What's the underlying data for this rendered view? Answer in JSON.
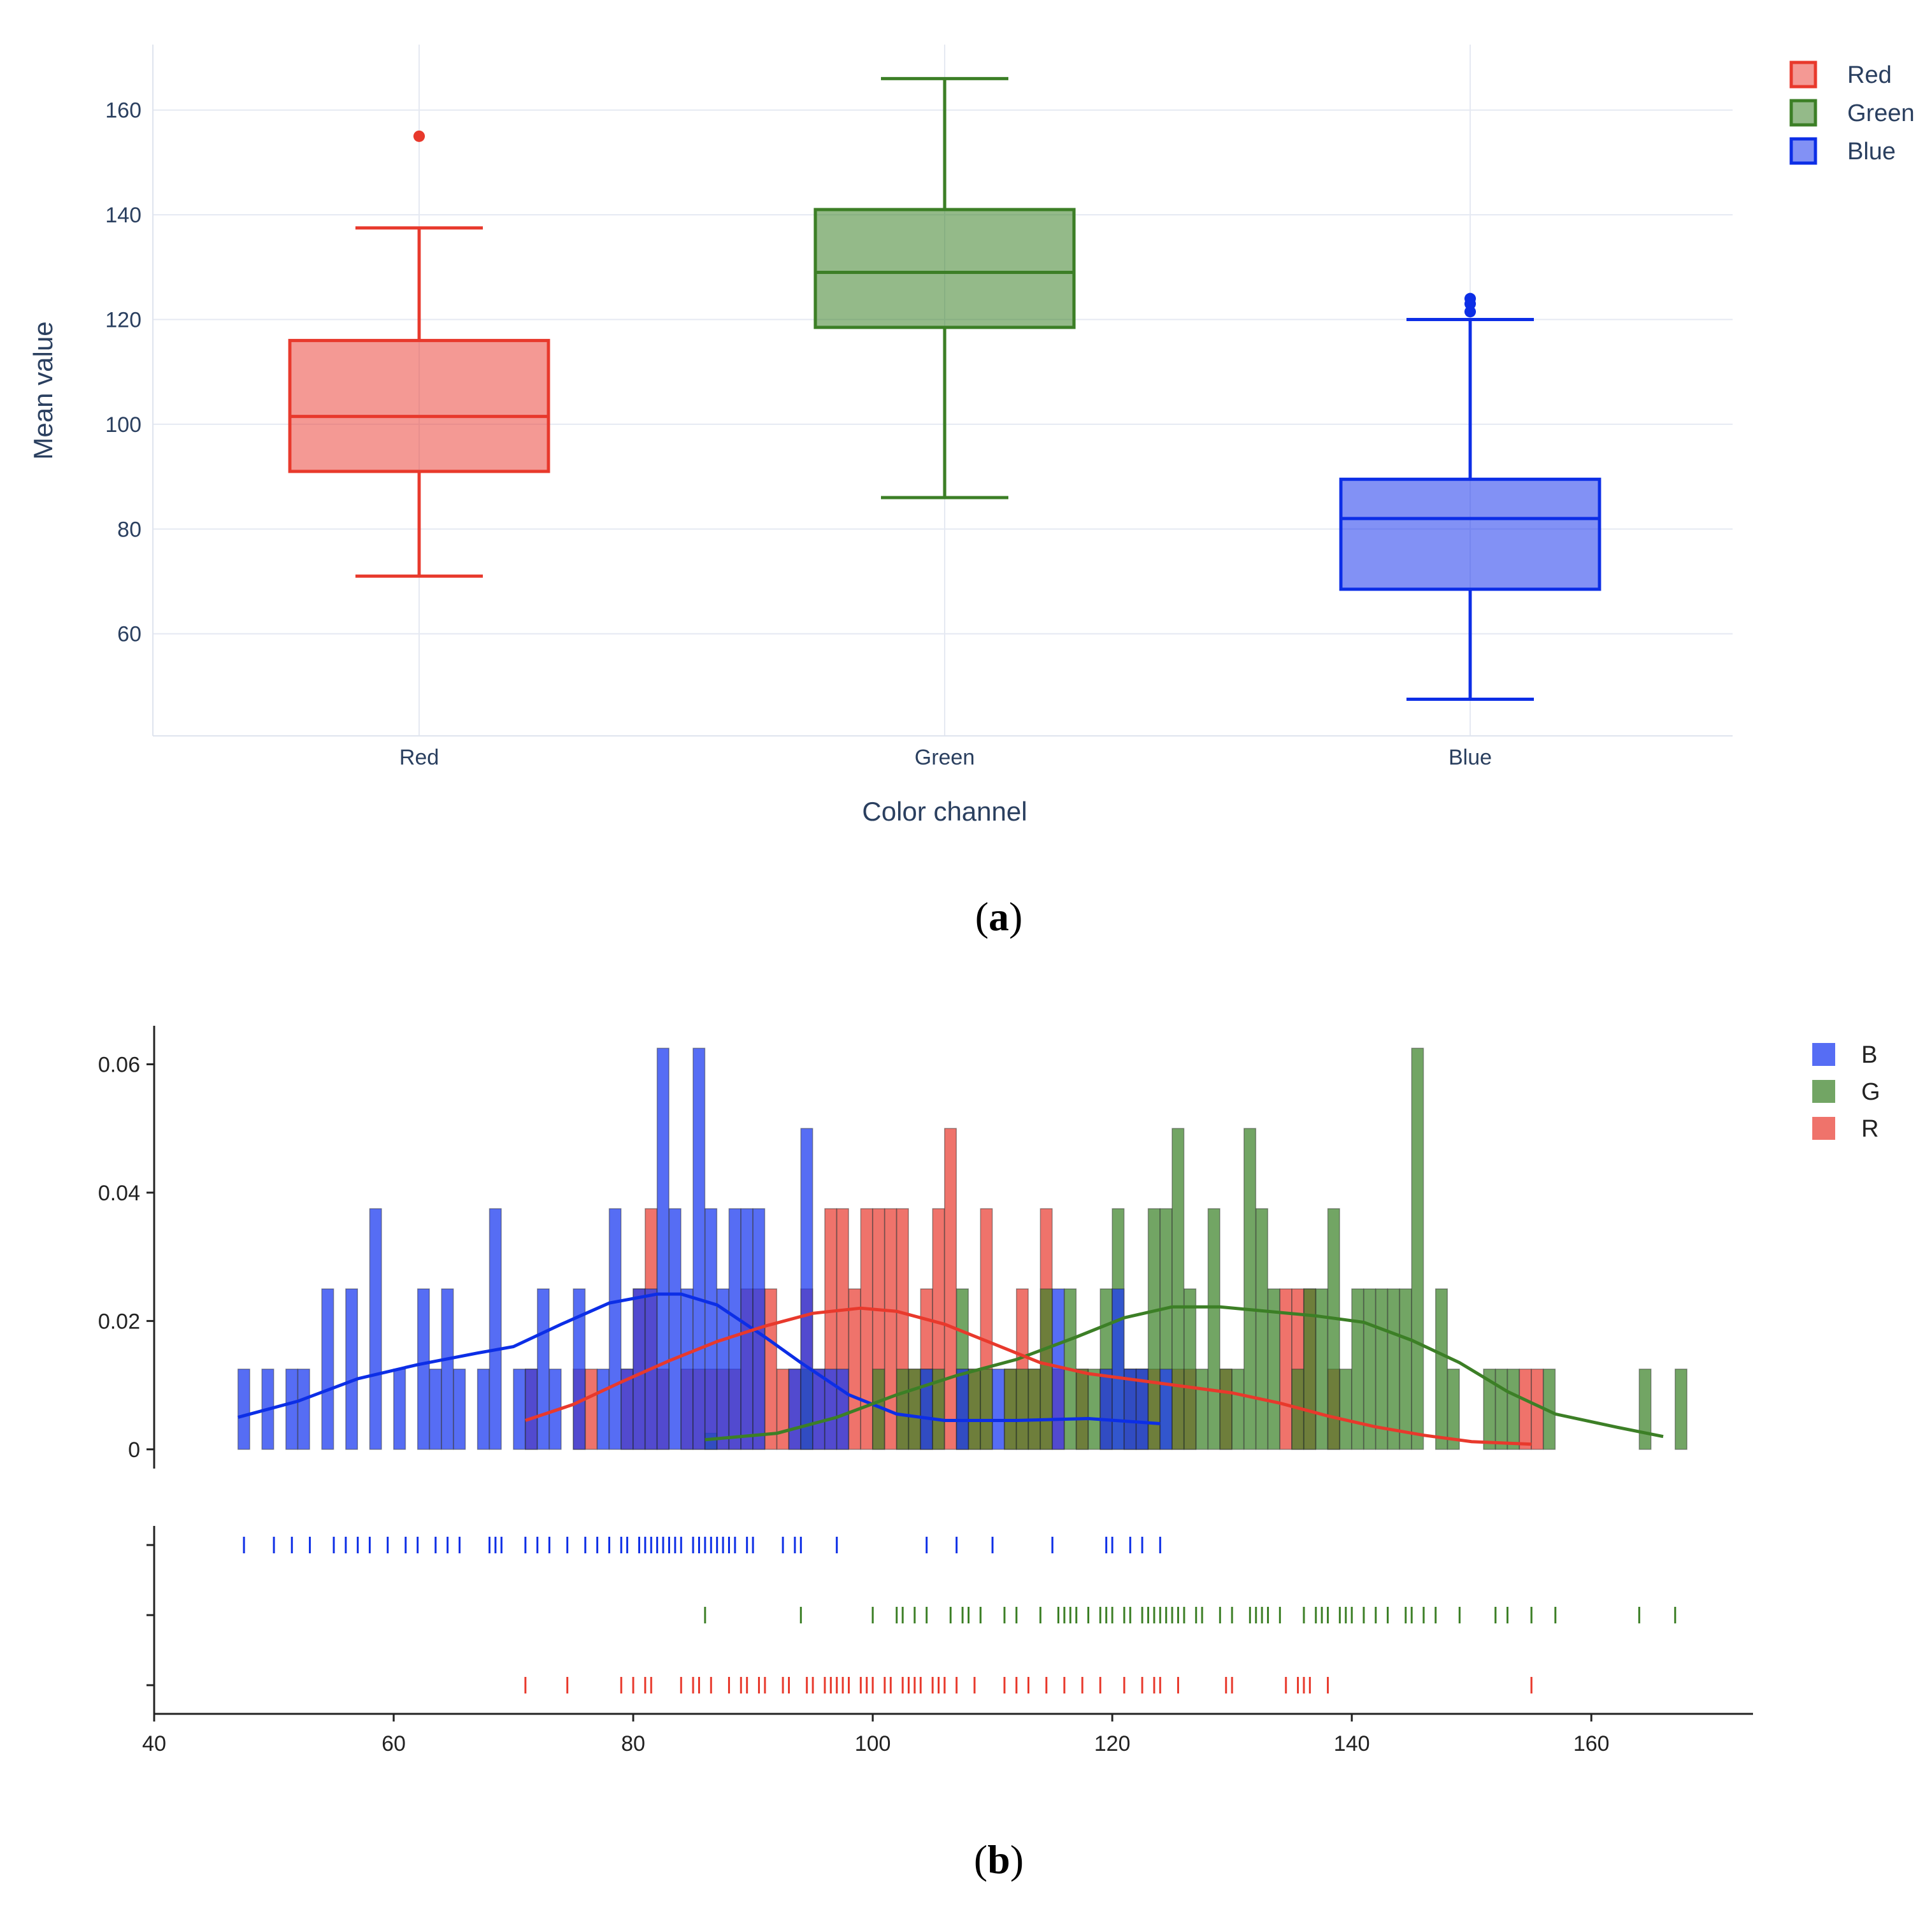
{
  "chart_data": [
    {
      "panel": "a",
      "type": "box",
      "caption": "a",
      "xlabel": "Color channel",
      "ylabel": "Mean value",
      "yticks": [
        60,
        80,
        100,
        120,
        140,
        160
      ],
      "ylim": [
        40.5,
        172.5
      ],
      "grid": true,
      "legend_position": "top-right",
      "series": [
        {
          "name": "Red",
          "category": "Red",
          "color": "#e8392c",
          "fill": "rgba(235,70,60,0.55)",
          "min": 71,
          "q1": 91,
          "median": 101.5,
          "q3": 116,
          "max": 137.5,
          "outliers": [
            155
          ]
        },
        {
          "name": "Green",
          "category": "Green",
          "color": "#3c7f26",
          "fill": "rgba(60,130,40,0.55)",
          "min": 86,
          "q1": 118.5,
          "median": 129,
          "q3": 141,
          "max": 166,
          "outliers": []
        },
        {
          "name": "Blue",
          "category": "Blue",
          "color": "#0c2ee6",
          "fill": "rgba(15,45,235,0.52)",
          "min": 47.5,
          "q1": 68.5,
          "median": 82,
          "q3": 89.5,
          "max": 120,
          "outliers": [
            121.5,
            123,
            124
          ]
        }
      ]
    },
    {
      "panel": "b",
      "type": "histogram",
      "caption": "b",
      "xticks": [
        40,
        60,
        80,
        100,
        120,
        140,
        160
      ],
      "xlim": [
        40,
        173.5
      ],
      "yticks": [
        0,
        0.02,
        0.04,
        0.06
      ],
      "ytick_labels": [
        "0",
        "0.02",
        "0.04",
        "0.06"
      ],
      "ylim": [
        -0.0025,
        0.066
      ],
      "bin_width": 1,
      "legend_position": "top-right",
      "series": [
        {
          "name": "B",
          "color": "#0c2ee6",
          "fill": "rgba(30,60,240,0.75)",
          "bins": [
            [
              47,
              0.0125
            ],
            [
              49,
              0.0125
            ],
            [
              51,
              0.0125
            ],
            [
              52,
              0.0125
            ],
            [
              54,
              0.025
            ],
            [
              56,
              0.025
            ],
            [
              58,
              0.0375
            ],
            [
              60,
              0.0125
            ],
            [
              62,
              0.025
            ],
            [
              63,
              0.0125
            ],
            [
              64,
              0.025
            ],
            [
              65,
              0.0125
            ],
            [
              67,
              0.0125
            ],
            [
              68,
              0.0375
            ],
            [
              70,
              0.0125
            ],
            [
              71,
              0.0125
            ],
            [
              72,
              0.025
            ],
            [
              73,
              0.0125
            ],
            [
              75,
              0.025
            ],
            [
              77,
              0.0125
            ],
            [
              78,
              0.0375
            ],
            [
              79,
              0.0125
            ],
            [
              80,
              0.025
            ],
            [
              81,
              0.025
            ],
            [
              82,
              0.0625
            ],
            [
              83,
              0.0375
            ],
            [
              84,
              0.025
            ],
            [
              85,
              0.0625
            ],
            [
              86,
              0.0375
            ],
            [
              87,
              0.025
            ],
            [
              88,
              0.0375
            ],
            [
              89,
              0.0375
            ],
            [
              90,
              0.0375
            ],
            [
              93,
              0.0125
            ],
            [
              94,
              0.05
            ],
            [
              95,
              0.0125
            ],
            [
              96,
              0.0125
            ],
            [
              97,
              0.0125
            ],
            [
              104,
              0.0125
            ],
            [
              107,
              0.0125
            ],
            [
              110,
              0.0125
            ],
            [
              115,
              0.025
            ],
            [
              119,
              0.0125
            ],
            [
              120,
              0.025
            ],
            [
              121,
              0.0125
            ],
            [
              122,
              0.0125
            ],
            [
              124,
              0.0125
            ]
          ],
          "kde": [
            [
              47,
              0.005
            ],
            [
              52,
              0.0075
            ],
            [
              57,
              0.011
            ],
            [
              62,
              0.0132
            ],
            [
              67,
              0.015
            ],
            [
              70,
              0.016
            ],
            [
              74,
              0.0195
            ],
            [
              78,
              0.0228
            ],
            [
              82,
              0.0242
            ],
            [
              84,
              0.0242
            ],
            [
              87,
              0.0225
            ],
            [
              91,
              0.0175
            ],
            [
              94,
              0.0135
            ],
            [
              98,
              0.0085
            ],
            [
              102,
              0.0055
            ],
            [
              106,
              0.0045
            ],
            [
              112,
              0.0045
            ],
            [
              118,
              0.0048
            ],
            [
              124,
              0.004
            ]
          ],
          "rug": [
            47.5,
            50,
            51.5,
            53,
            55,
            56,
            57,
            58,
            59.5,
            61,
            62,
            63.5,
            64.5,
            65.5,
            68,
            68.5,
            69,
            71,
            72,
            73,
            74.5,
            76,
            77,
            78,
            79,
            79.5,
            80.5,
            81,
            81.5,
            82,
            82.5,
            83,
            83.5,
            84,
            85,
            85.5,
            86,
            86.5,
            87,
            87.5,
            88,
            88.5,
            89.5,
            90,
            92.5,
            93.5,
            94,
            97,
            104.5,
            107,
            110,
            115,
            119.5,
            120,
            121.5,
            122.5,
            124
          ]
        },
        {
          "name": "G",
          "color": "#3c7f26",
          "fill": "rgba(60,130,40,0.72)",
          "bins": [
            [
              86,
              0.0025
            ],
            [
              94,
              0.0125
            ],
            [
              100,
              0.0125
            ],
            [
              102,
              0.0125
            ],
            [
              103,
              0.0125
            ],
            [
              104,
              0.0125
            ],
            [
              105,
              0.0125
            ],
            [
              107,
              0.025
            ],
            [
              108,
              0.0125
            ],
            [
              109,
              0.0125
            ],
            [
              111,
              0.0125
            ],
            [
              112,
              0.0125
            ],
            [
              113,
              0.0125
            ],
            [
              114,
              0.025
            ],
            [
              116,
              0.025
            ],
            [
              117,
              0.0125
            ],
            [
              118,
              0.0125
            ],
            [
              119,
              0.025
            ],
            [
              120,
              0.0375
            ],
            [
              121,
              0.0125
            ],
            [
              122,
              0.0125
            ],
            [
              123,
              0.0375
            ],
            [
              124,
              0.0375
            ],
            [
              125,
              0.05
            ],
            [
              126,
              0.025
            ],
            [
              127,
              0.0125
            ],
            [
              128,
              0.0375
            ],
            [
              129,
              0.0125
            ],
            [
              130,
              0.0125
            ],
            [
              131,
              0.05
            ],
            [
              132,
              0.0375
            ],
            [
              133,
              0.025
            ],
            [
              135,
              0.0125
            ],
            [
              136,
              0.025
            ],
            [
              137,
              0.025
            ],
            [
              138,
              0.0375
            ],
            [
              139,
              0.0125
            ],
            [
              140,
              0.025
            ],
            [
              141,
              0.025
            ],
            [
              142,
              0.025
            ],
            [
              143,
              0.025
            ],
            [
              144,
              0.025
            ],
            [
              145,
              0.0625
            ],
            [
              147,
              0.025
            ],
            [
              148,
              0.0125
            ],
            [
              151,
              0.0125
            ],
            [
              152,
              0.0125
            ],
            [
              153,
              0.0125
            ],
            [
              156,
              0.0125
            ],
            [
              164,
              0.0125
            ],
            [
              167,
              0.0125
            ]
          ],
          "kde": [
            [
              86,
              0.0015
            ],
            [
              92,
              0.0025
            ],
            [
              97,
              0.005
            ],
            [
              102,
              0.0085
            ],
            [
              107,
              0.0115
            ],
            [
              112,
              0.014
            ],
            [
              117,
              0.0175
            ],
            [
              121,
              0.0205
            ],
            [
              125,
              0.0222
            ],
            [
              129,
              0.0222
            ],
            [
              133,
              0.0215
            ],
            [
              137,
              0.0208
            ],
            [
              141,
              0.0198
            ],
            [
              145,
              0.017
            ],
            [
              149,
              0.0135
            ],
            [
              153,
              0.009
            ],
            [
              157,
              0.0055
            ],
            [
              162,
              0.0035
            ],
            [
              166,
              0.002
            ]
          ],
          "rug": [
            86,
            94,
            100,
            102,
            102.5,
            103.5,
            104.5,
            106.5,
            107.5,
            108,
            109,
            111,
            112,
            114,
            115.5,
            116,
            116.5,
            117,
            118,
            119,
            119.5,
            120,
            121,
            121.5,
            122.5,
            123,
            123.5,
            124,
            124.5,
            125,
            125.5,
            126,
            127,
            127.5,
            129,
            130,
            131.5,
            132,
            132.5,
            133,
            134,
            136,
            137,
            137.5,
            138,
            139,
            139.5,
            140,
            141,
            142,
            143,
            144.5,
            145,
            146,
            147,
            149,
            152,
            153,
            155,
            157,
            164,
            167
          ]
        },
        {
          "name": "R",
          "color": "#e8392c",
          "fill": "rgba(235,75,65,0.78)",
          "bins": [
            [
              71,
              0.0125
            ],
            [
              75,
              0.0125
            ],
            [
              76,
              0.0125
            ],
            [
              79,
              0.0125
            ],
            [
              80,
              0.025
            ],
            [
              81,
              0.0375
            ],
            [
              82,
              0.0125
            ],
            [
              84,
              0.0125
            ],
            [
              85,
              0.0125
            ],
            [
              86,
              0.0125
            ],
            [
              87,
              0.0125
            ],
            [
              88,
              0.0125
            ],
            [
              89,
              0.025
            ],
            [
              90,
              0.025
            ],
            [
              91,
              0.025
            ],
            [
              92,
              0.0125
            ],
            [
              93,
              0.0125
            ],
            [
              94,
              0.025
            ],
            [
              95,
              0.0125
            ],
            [
              96,
              0.0375
            ],
            [
              97,
              0.0375
            ],
            [
              98,
              0.025
            ],
            [
              99,
              0.0375
            ],
            [
              100,
              0.0375
            ],
            [
              101,
              0.0375
            ],
            [
              102,
              0.0375
            ],
            [
              103,
              0.0125
            ],
            [
              104,
              0.025
            ],
            [
              105,
              0.0375
            ],
            [
              106,
              0.05
            ],
            [
              107,
              0.0125
            ],
            [
              108,
              0.0125
            ],
            [
              109,
              0.0375
            ],
            [
              111,
              0.0125
            ],
            [
              112,
              0.025
            ],
            [
              113,
              0.0125
            ],
            [
              114,
              0.0375
            ],
            [
              115,
              0.0125
            ],
            [
              117,
              0.0125
            ],
            [
              119,
              0.0125
            ],
            [
              121,
              0.0125
            ],
            [
              122,
              0.0125
            ],
            [
              123,
              0.0125
            ],
            [
              125,
              0.0125
            ],
            [
              126,
              0.0125
            ],
            [
              129,
              0.0125
            ],
            [
              134,
              0.025
            ],
            [
              135,
              0.025
            ],
            [
              136,
              0.025
            ],
            [
              138,
              0.0125
            ],
            [
              154,
              0.0125
            ],
            [
              155,
              0.0125
            ]
          ],
          "kde": [
            [
              71,
              0.0045
            ],
            [
              75,
              0.007
            ],
            [
              79,
              0.0105
            ],
            [
              83,
              0.0138
            ],
            [
              87,
              0.0168
            ],
            [
              91,
              0.0192
            ],
            [
              95,
              0.0212
            ],
            [
              99,
              0.022
            ],
            [
              102,
              0.0215
            ],
            [
              106,
              0.0195
            ],
            [
              110,
              0.0165
            ],
            [
              114,
              0.0135
            ],
            [
              118,
              0.0118
            ],
            [
              122,
              0.0108
            ],
            [
              126,
              0.0098
            ],
            [
              130,
              0.0088
            ],
            [
              134,
              0.0072
            ],
            [
              138,
              0.0052
            ],
            [
              142,
              0.0035
            ],
            [
              146,
              0.0022
            ],
            [
              150,
              0.0012
            ],
            [
              155,
              0.0008
            ]
          ],
          "rug": [
            71,
            74.5,
            79,
            80,
            81,
            81.5,
            84,
            85,
            85.5,
            86.5,
            88,
            89,
            89.5,
            90.5,
            91,
            92.5,
            93,
            94.5,
            95,
            96,
            96.5,
            97,
            97.5,
            98,
            99,
            99.5,
            100,
            101,
            101.5,
            102.5,
            103,
            103.5,
            104,
            105,
            105.5,
            106,
            107,
            108.5,
            111,
            112,
            113,
            114.5,
            116,
            117.5,
            119,
            121,
            122.5,
            123.5,
            124,
            125.5,
            129.5,
            130,
            134.5,
            135.5,
            136,
            136.5,
            138,
            155
          ]
        }
      ]
    }
  ]
}
